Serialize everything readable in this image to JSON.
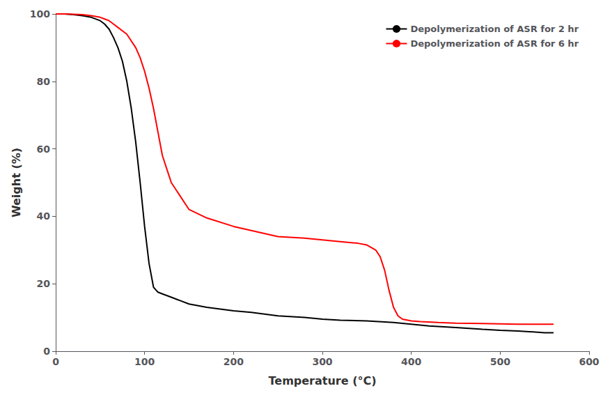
{
  "chart_data": {
    "type": "line",
    "xlabel": "Temperature (°C)",
    "ylabel": "Weight (%)",
    "xlim": [
      0,
      600
    ],
    "ylim": [
      0,
      100
    ],
    "xticks": [
      0,
      100,
      200,
      300,
      400,
      500,
      600
    ],
    "yticks": [
      0,
      20,
      40,
      60,
      80,
      100
    ],
    "grid": false,
    "legend": "upper right",
    "series": [
      {
        "name": "Depolymerization of ASR for 2 hr",
        "color": "#000000",
        "x": [
          0,
          10,
          20,
          30,
          40,
          50,
          55,
          60,
          65,
          70,
          75,
          80,
          85,
          90,
          95,
          100,
          105,
          110,
          115,
          120,
          130,
          140,
          150,
          170,
          200,
          220,
          250,
          280,
          300,
          320,
          350,
          380,
          400,
          420,
          450,
          480,
          500,
          520,
          550,
          560
        ],
        "values": [
          100,
          100,
          99.8,
          99.5,
          99,
          98,
          97,
          95.5,
          93,
          90,
          86,
          80,
          72,
          62,
          50,
          37,
          26,
          19,
          17.5,
          17,
          16,
          15,
          14,
          13,
          12,
          11.5,
          10.5,
          10,
          9.5,
          9.2,
          9,
          8.5,
          8,
          7.5,
          7,
          6.5,
          6.2,
          6,
          5.5,
          5.5
        ]
      },
      {
        "name": "Depolymerization of ASR for 6 hr",
        "color": "#ff0000",
        "x": [
          0,
          10,
          20,
          30,
          40,
          50,
          55,
          60,
          65,
          70,
          75,
          80,
          85,
          90,
          95,
          100,
          105,
          110,
          115,
          120,
          130,
          150,
          170,
          200,
          250,
          280,
          300,
          320,
          340,
          350,
          360,
          365,
          370,
          375,
          380,
          385,
          390,
          400,
          410,
          430,
          450,
          480,
          500,
          520,
          550,
          560
        ],
        "values": [
          100,
          100,
          99.9,
          99.8,
          99.5,
          99,
          98.5,
          98,
          97,
          96,
          95,
          94,
          92,
          90,
          87,
          83,
          78,
          72,
          65,
          58,
          50,
          42,
          39.5,
          37,
          34,
          33.5,
          33,
          32.5,
          32,
          31.5,
          30,
          28,
          24,
          18,
          13,
          10.5,
          9.5,
          9.0,
          8.8,
          8.5,
          8.3,
          8.2,
          8.1,
          8.0,
          8.0,
          8.0
        ]
      }
    ]
  }
}
